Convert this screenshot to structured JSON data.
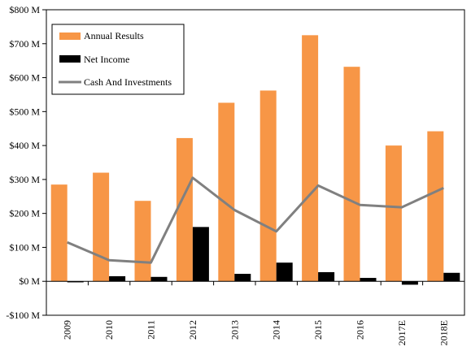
{
  "chart_data": {
    "type": "bar",
    "title": "",
    "xlabel": "",
    "ylabel": "",
    "categories": [
      "2009",
      "2010",
      "2011",
      "2012",
      "2013",
      "2014",
      "2015",
      "2016",
      "2017E",
      "2018E"
    ],
    "ylim": [
      -100,
      800
    ],
    "y_ticks": [
      -100,
      0,
      100,
      200,
      300,
      400,
      500,
      600,
      700,
      800
    ],
    "y_tick_labels": [
      "-$100 M",
      "$0 M",
      "$100 M",
      "$200 M",
      "$300 M",
      "$400 M",
      "$500 M",
      "$600 M",
      "$700 M",
      "$800 M"
    ],
    "grid": false,
    "legend_position": "top-left",
    "series": [
      {
        "name": "Annual Results",
        "kind": "bar",
        "color": "#f79646",
        "values": [
          285,
          320,
          237,
          422,
          526,
          562,
          725,
          632,
          400,
          442
        ]
      },
      {
        "name": "Net Income",
        "kind": "bar",
        "color": "#000000",
        "values": [
          -3,
          15,
          13,
          160,
          22,
          55,
          27,
          10,
          -10,
          25
        ]
      },
      {
        "name": "Cash And Investments",
        "kind": "line",
        "color": "#808080",
        "values": [
          115,
          62,
          55,
          305,
          210,
          147,
          282,
          225,
          218,
          275
        ]
      }
    ]
  }
}
